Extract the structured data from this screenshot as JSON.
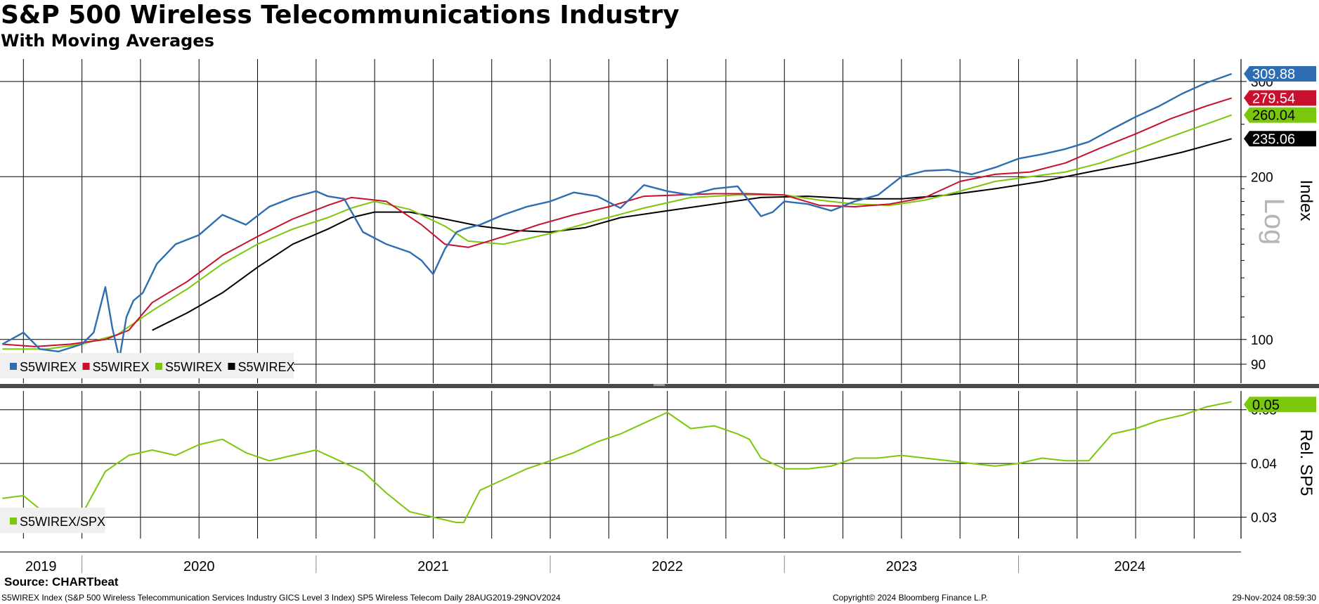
{
  "header": {
    "title": "S&P 500 Wireless Telecommunications Industry",
    "subtitle": "With Moving Averages"
  },
  "footer": {
    "source": "Source: CHARTbeat",
    "description": "S5WIREX Index (S&P 500 Wireless Telecommunication Services Industry GICS Level 3 Index) SP5 Wireless Telecom  Daily 28AUG2019-29NOV2024",
    "copyright": "Copyright© 2024 Bloomberg Finance L.P.",
    "timestamp": "29-Nov-2024 08:59:30"
  },
  "colors": {
    "price": "#2e6db4",
    "ma_red": "#c8102e",
    "ma_green": "#7ac70c",
    "ma_black": "#000000",
    "relative": "#7ac70c"
  },
  "chart_data": [
    {
      "type": "line",
      "panel": "top",
      "scale": "log",
      "axis_label": "Index",
      "scale_watermark": "Log",
      "ylim": [
        83,
        330
      ],
      "yticks": [
        90,
        100,
        200,
        300
      ],
      "ytick_labels": [
        "90",
        "100",
        "200",
        "300"
      ],
      "xlim": [
        2019.65,
        2024.95
      ],
      "year_ticks": [
        "2019",
        "2020",
        "2021",
        "2022",
        "2023",
        "2024"
      ],
      "legend_position": "bottom-left",
      "series": [
        {
          "name": "S5WIREX",
          "color_key": "price",
          "last_value_label": "309.88",
          "x": [
            2019.66,
            2019.75,
            2019.82,
            2019.9,
            2020.0,
            2020.05,
            2020.1,
            2020.13,
            2020.16,
            2020.19,
            2020.22,
            2020.26,
            2020.32,
            2020.4,
            2020.5,
            2020.6,
            2020.7,
            2020.8,
            2020.9,
            2021.0,
            2021.05,
            2021.12,
            2021.2,
            2021.3,
            2021.4,
            2021.45,
            2021.5,
            2021.55,
            2021.6,
            2021.63,
            2021.7,
            2021.8,
            2021.9,
            2022.0,
            2022.1,
            2022.2,
            2022.3,
            2022.4,
            2022.5,
            2022.6,
            2022.7,
            2022.8,
            2022.85,
            2022.9,
            2022.95,
            2023.0,
            2023.1,
            2023.2,
            2023.3,
            2023.4,
            2023.5,
            2023.6,
            2023.7,
            2023.8,
            2023.9,
            2024.0,
            2024.1,
            2024.2,
            2024.3,
            2024.4,
            2024.5,
            2024.6,
            2024.7,
            2024.8,
            2024.91
          ],
          "y": [
            98,
            103,
            96,
            95,
            98,
            103,
            125,
            105,
            92,
            110,
            118,
            122,
            138,
            150,
            156,
            170,
            163,
            176,
            183,
            188,
            184,
            182,
            158,
            150,
            145,
            140,
            132,
            147,
            158,
            160,
            163,
            170,
            176,
            180,
            187,
            184,
            175,
            193,
            188,
            185,
            190,
            192,
            180,
            169,
            172,
            180,
            178,
            173,
            180,
            185,
            200,
            205,
            206,
            202,
            208,
            216,
            220,
            225,
            232,
            245,
            258,
            270,
            285,
            298,
            309.88
          ]
        },
        {
          "name": "S5WIREX",
          "color_key": "ma_red",
          "last_value_label": "279.54",
          "x": [
            2019.66,
            2019.8,
            2019.95,
            2020.1,
            2020.2,
            2020.3,
            2020.45,
            2020.6,
            2020.75,
            2020.9,
            2021.05,
            2021.15,
            2021.3,
            2021.45,
            2021.55,
            2021.65,
            2021.8,
            2021.95,
            2022.1,
            2022.25,
            2022.4,
            2022.55,
            2022.7,
            2022.85,
            2023.0,
            2023.15,
            2023.3,
            2023.45,
            2023.6,
            2023.75,
            2023.9,
            2024.05,
            2024.2,
            2024.35,
            2024.5,
            2024.65,
            2024.8,
            2024.91
          ],
          "y": [
            98,
            97,
            98,
            100,
            104,
            117,
            128,
            143,
            155,
            167,
            177,
            183,
            180,
            163,
            150,
            148,
            155,
            163,
            170,
            176,
            184,
            185,
            186,
            186,
            185,
            177,
            176,
            178,
            183,
            196,
            202,
            204,
            212,
            226,
            240,
            256,
            270,
            279.54
          ]
        },
        {
          "name": "S5WIREX",
          "color_key": "ma_green",
          "last_value_label": "260.04",
          "x": [
            2019.66,
            2019.85,
            2020.0,
            2020.15,
            2020.3,
            2020.45,
            2020.6,
            2020.75,
            2020.9,
            2021.05,
            2021.15,
            2021.25,
            2021.4,
            2021.55,
            2021.65,
            2021.8,
            2022.0,
            2022.2,
            2022.4,
            2022.6,
            2022.8,
            2023.0,
            2023.15,
            2023.3,
            2023.45,
            2023.6,
            2023.75,
            2023.9,
            2024.05,
            2024.2,
            2024.35,
            2024.5,
            2024.65,
            2024.8,
            2024.91
          ],
          "y": [
            96,
            96,
            98,
            102,
            113,
            124,
            138,
            150,
            160,
            168,
            175,
            180,
            174,
            162,
            152,
            150,
            157,
            166,
            175,
            183,
            185,
            185,
            181,
            178,
            177,
            181,
            188,
            196,
            200,
            204,
            212,
            224,
            237,
            250,
            260.04
          ]
        },
        {
          "name": "S5WIREX",
          "color_key": "ma_black",
          "last_value_label": "235.06",
          "x": [
            2020.3,
            2020.45,
            2020.6,
            2020.75,
            2020.9,
            2021.05,
            2021.15,
            2021.25,
            2021.4,
            2021.55,
            2021.7,
            2021.85,
            2022.0,
            2022.15,
            2022.3,
            2022.5,
            2022.7,
            2022.9,
            2023.1,
            2023.3,
            2023.5,
            2023.7,
            2023.9,
            2024.1,
            2024.3,
            2024.5,
            2024.7,
            2024.91
          ],
          "y": [
            104,
            112,
            122,
            136,
            150,
            160,
            168,
            172,
            172,
            167,
            162,
            159,
            158,
            161,
            168,
            173,
            178,
            183,
            184,
            182,
            182,
            185,
            190,
            196,
            204,
            212,
            222,
            235.06
          ]
        }
      ]
    },
    {
      "type": "line",
      "panel": "bottom",
      "scale": "linear",
      "axis_label": "Rel. SP5",
      "ylim": [
        0.026,
        0.0535
      ],
      "yticks": [
        0.03,
        0.04,
        0.05
      ],
      "ytick_labels": [
        "0.03",
        "0.04",
        "0.05"
      ],
      "xlim": [
        2019.65,
        2024.95
      ],
      "legend_position": "bottom-left",
      "series": [
        {
          "name": "S5WIREX/SPX",
          "color_key": "relative",
          "last_value_label": "0.05",
          "x": [
            2019.66,
            2019.75,
            2019.82,
            2019.9,
            2020.0,
            2020.1,
            2020.15,
            2020.2,
            2020.3,
            2020.4,
            2020.5,
            2020.6,
            2020.7,
            2020.8,
            2020.9,
            2021.0,
            2021.1,
            2021.2,
            2021.3,
            2021.4,
            2021.5,
            2021.6,
            2021.63,
            2021.7,
            2021.8,
            2021.9,
            2022.0,
            2022.1,
            2022.2,
            2022.3,
            2022.4,
            2022.5,
            2022.6,
            2022.7,
            2022.8,
            2022.85,
            2022.9,
            2023.0,
            2023.1,
            2023.2,
            2023.3,
            2023.4,
            2023.5,
            2023.6,
            2023.7,
            2023.8,
            2023.9,
            2024.0,
            2024.1,
            2024.2,
            2024.3,
            2024.4,
            2024.5,
            2024.6,
            2024.7,
            2024.8,
            2024.91
          ],
          "y": [
            0.0335,
            0.034,
            0.0315,
            0.0295,
            0.0305,
            0.0385,
            0.04,
            0.0415,
            0.0425,
            0.0415,
            0.0435,
            0.0445,
            0.042,
            0.0405,
            0.0415,
            0.0425,
            0.0405,
            0.0385,
            0.0345,
            0.031,
            0.03,
            0.029,
            0.029,
            0.035,
            0.037,
            0.039,
            0.0405,
            0.042,
            0.044,
            0.0455,
            0.0475,
            0.0495,
            0.0465,
            0.047,
            0.0455,
            0.0445,
            0.041,
            0.039,
            0.039,
            0.0395,
            0.041,
            0.041,
            0.0415,
            0.041,
            0.0405,
            0.04,
            0.0395,
            0.04,
            0.041,
            0.0405,
            0.0405,
            0.0455,
            0.0465,
            0.048,
            0.049,
            0.0505,
            0.0515
          ]
        }
      ]
    }
  ]
}
